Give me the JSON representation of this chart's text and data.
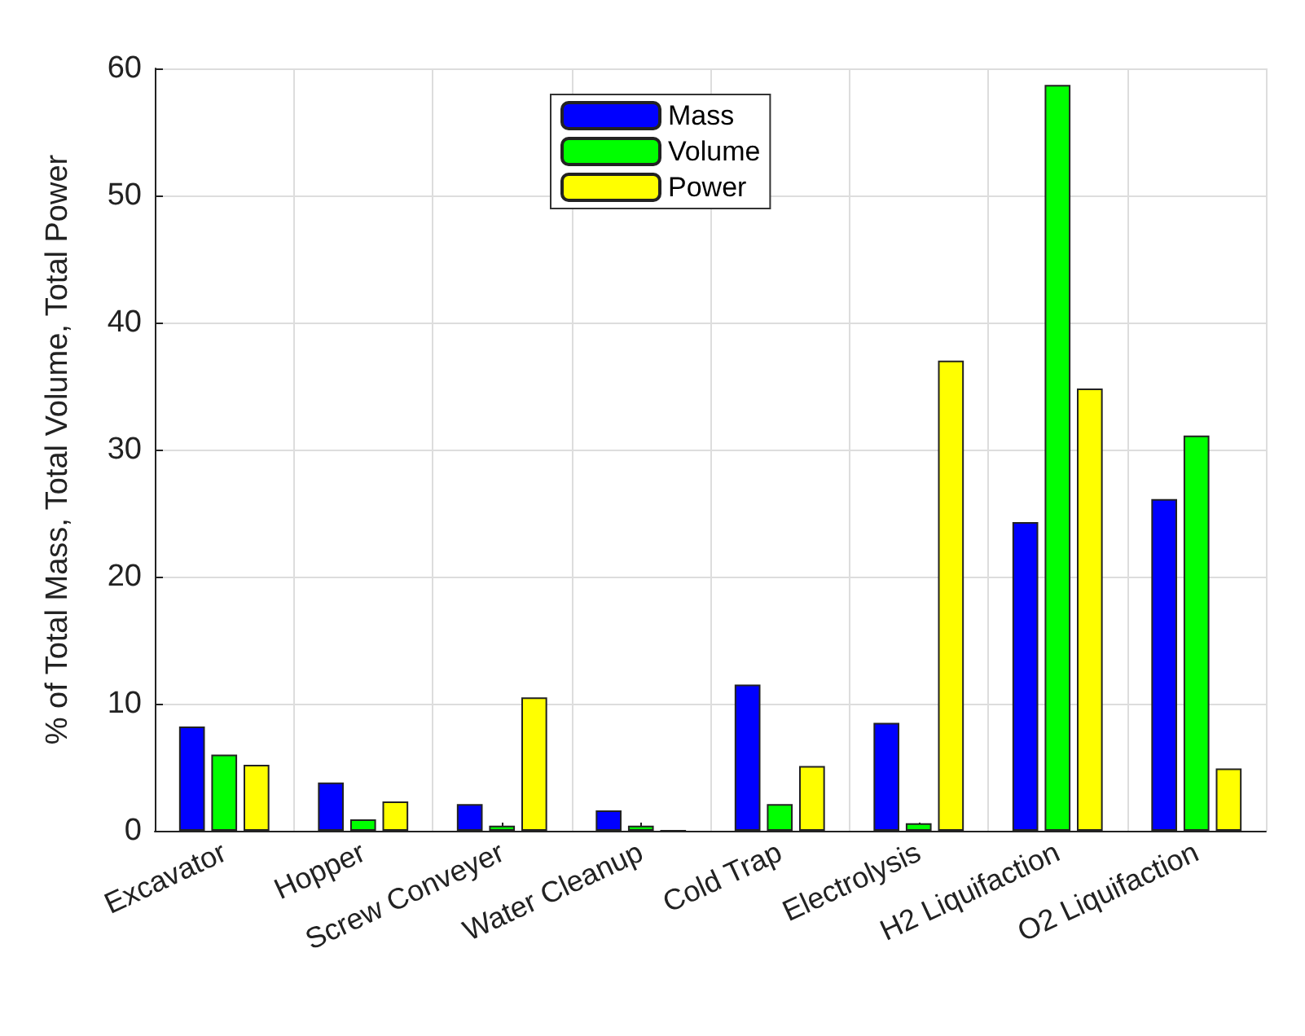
{
  "chart_data": {
    "type": "bar",
    "ylabel": "% of Total Mass, Total Volume, Total Power",
    "categories": [
      "Excavator",
      "Hopper",
      "Screw Conveyer",
      "Water Cleanup",
      "Cold Trap",
      "Electrolysis",
      "H2 Liquifaction",
      "O2 Liquifaction"
    ],
    "series": [
      {
        "name": "Mass",
        "color": "#0000ff",
        "values": [
          8.2,
          3.8,
          2.1,
          1.6,
          11.5,
          8.5,
          24.3,
          26.1
        ]
      },
      {
        "name": "Volume",
        "color": "#00ff00",
        "values": [
          6.0,
          0.9,
          0.4,
          0.4,
          2.1,
          0.6,
          58.7,
          31.1
        ]
      },
      {
        "name": "Power",
        "color": "#ffff00",
        "values": [
          5.2,
          2.3,
          10.5,
          0,
          5.1,
          37.0,
          34.8,
          4.9
        ]
      }
    ],
    "ylim": [
      0,
      60
    ],
    "yticks": [
      0,
      10,
      20,
      30,
      40,
      50,
      60
    ],
    "grid": true,
    "legend": "top"
  }
}
